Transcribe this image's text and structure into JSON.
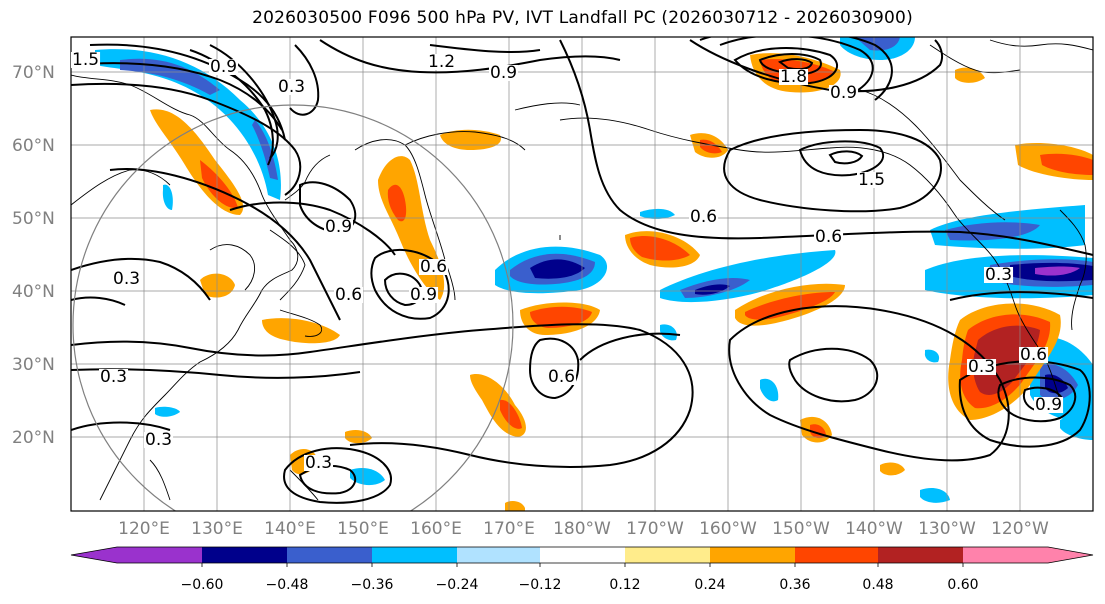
{
  "title": "2026030500 F096 500 hPa PV, IVT Landfall PC (2026030712 - 2026030900)",
  "lat_labels": [
    "70°N",
    "60°N",
    "50°N",
    "40°N",
    "30°N",
    "20°N"
  ],
  "lon_labels": [
    "120°E",
    "130°E",
    "140°E",
    "150°E",
    "160°E",
    "170°E",
    "180°W",
    "170°W",
    "160°W",
    "150°W",
    "140°W",
    "130°W",
    "120°W"
  ],
  "colorbar": {
    "ticks": [
      "−0.60",
      "−0.48",
      "−0.36",
      "−0.24",
      "−0.12",
      "0.12",
      "0.24",
      "0.36",
      "0.48",
      "0.60"
    ],
    "colors": [
      "#9a32cd",
      "#00008b",
      "#3a5fcd",
      "#00bfff",
      "#b0e2ff",
      "#ffffff",
      "#ffec8b",
      "#ffa500",
      "#ff4500",
      "#b22222",
      "#ff82ab"
    ]
  },
  "contour_labels": [
    "1.2",
    "0.9",
    "0.3",
    "1.5",
    "0.9",
    "0.6",
    "0.3",
    "0.9",
    "0.6",
    "0.3",
    "0.6",
    "0.3",
    "0.3",
    "1.5",
    "1.8",
    "0.9",
    "0.6",
    "0.9",
    "0.3",
    "0.6",
    "0.9",
    "0.3",
    "0.6"
  ]
}
